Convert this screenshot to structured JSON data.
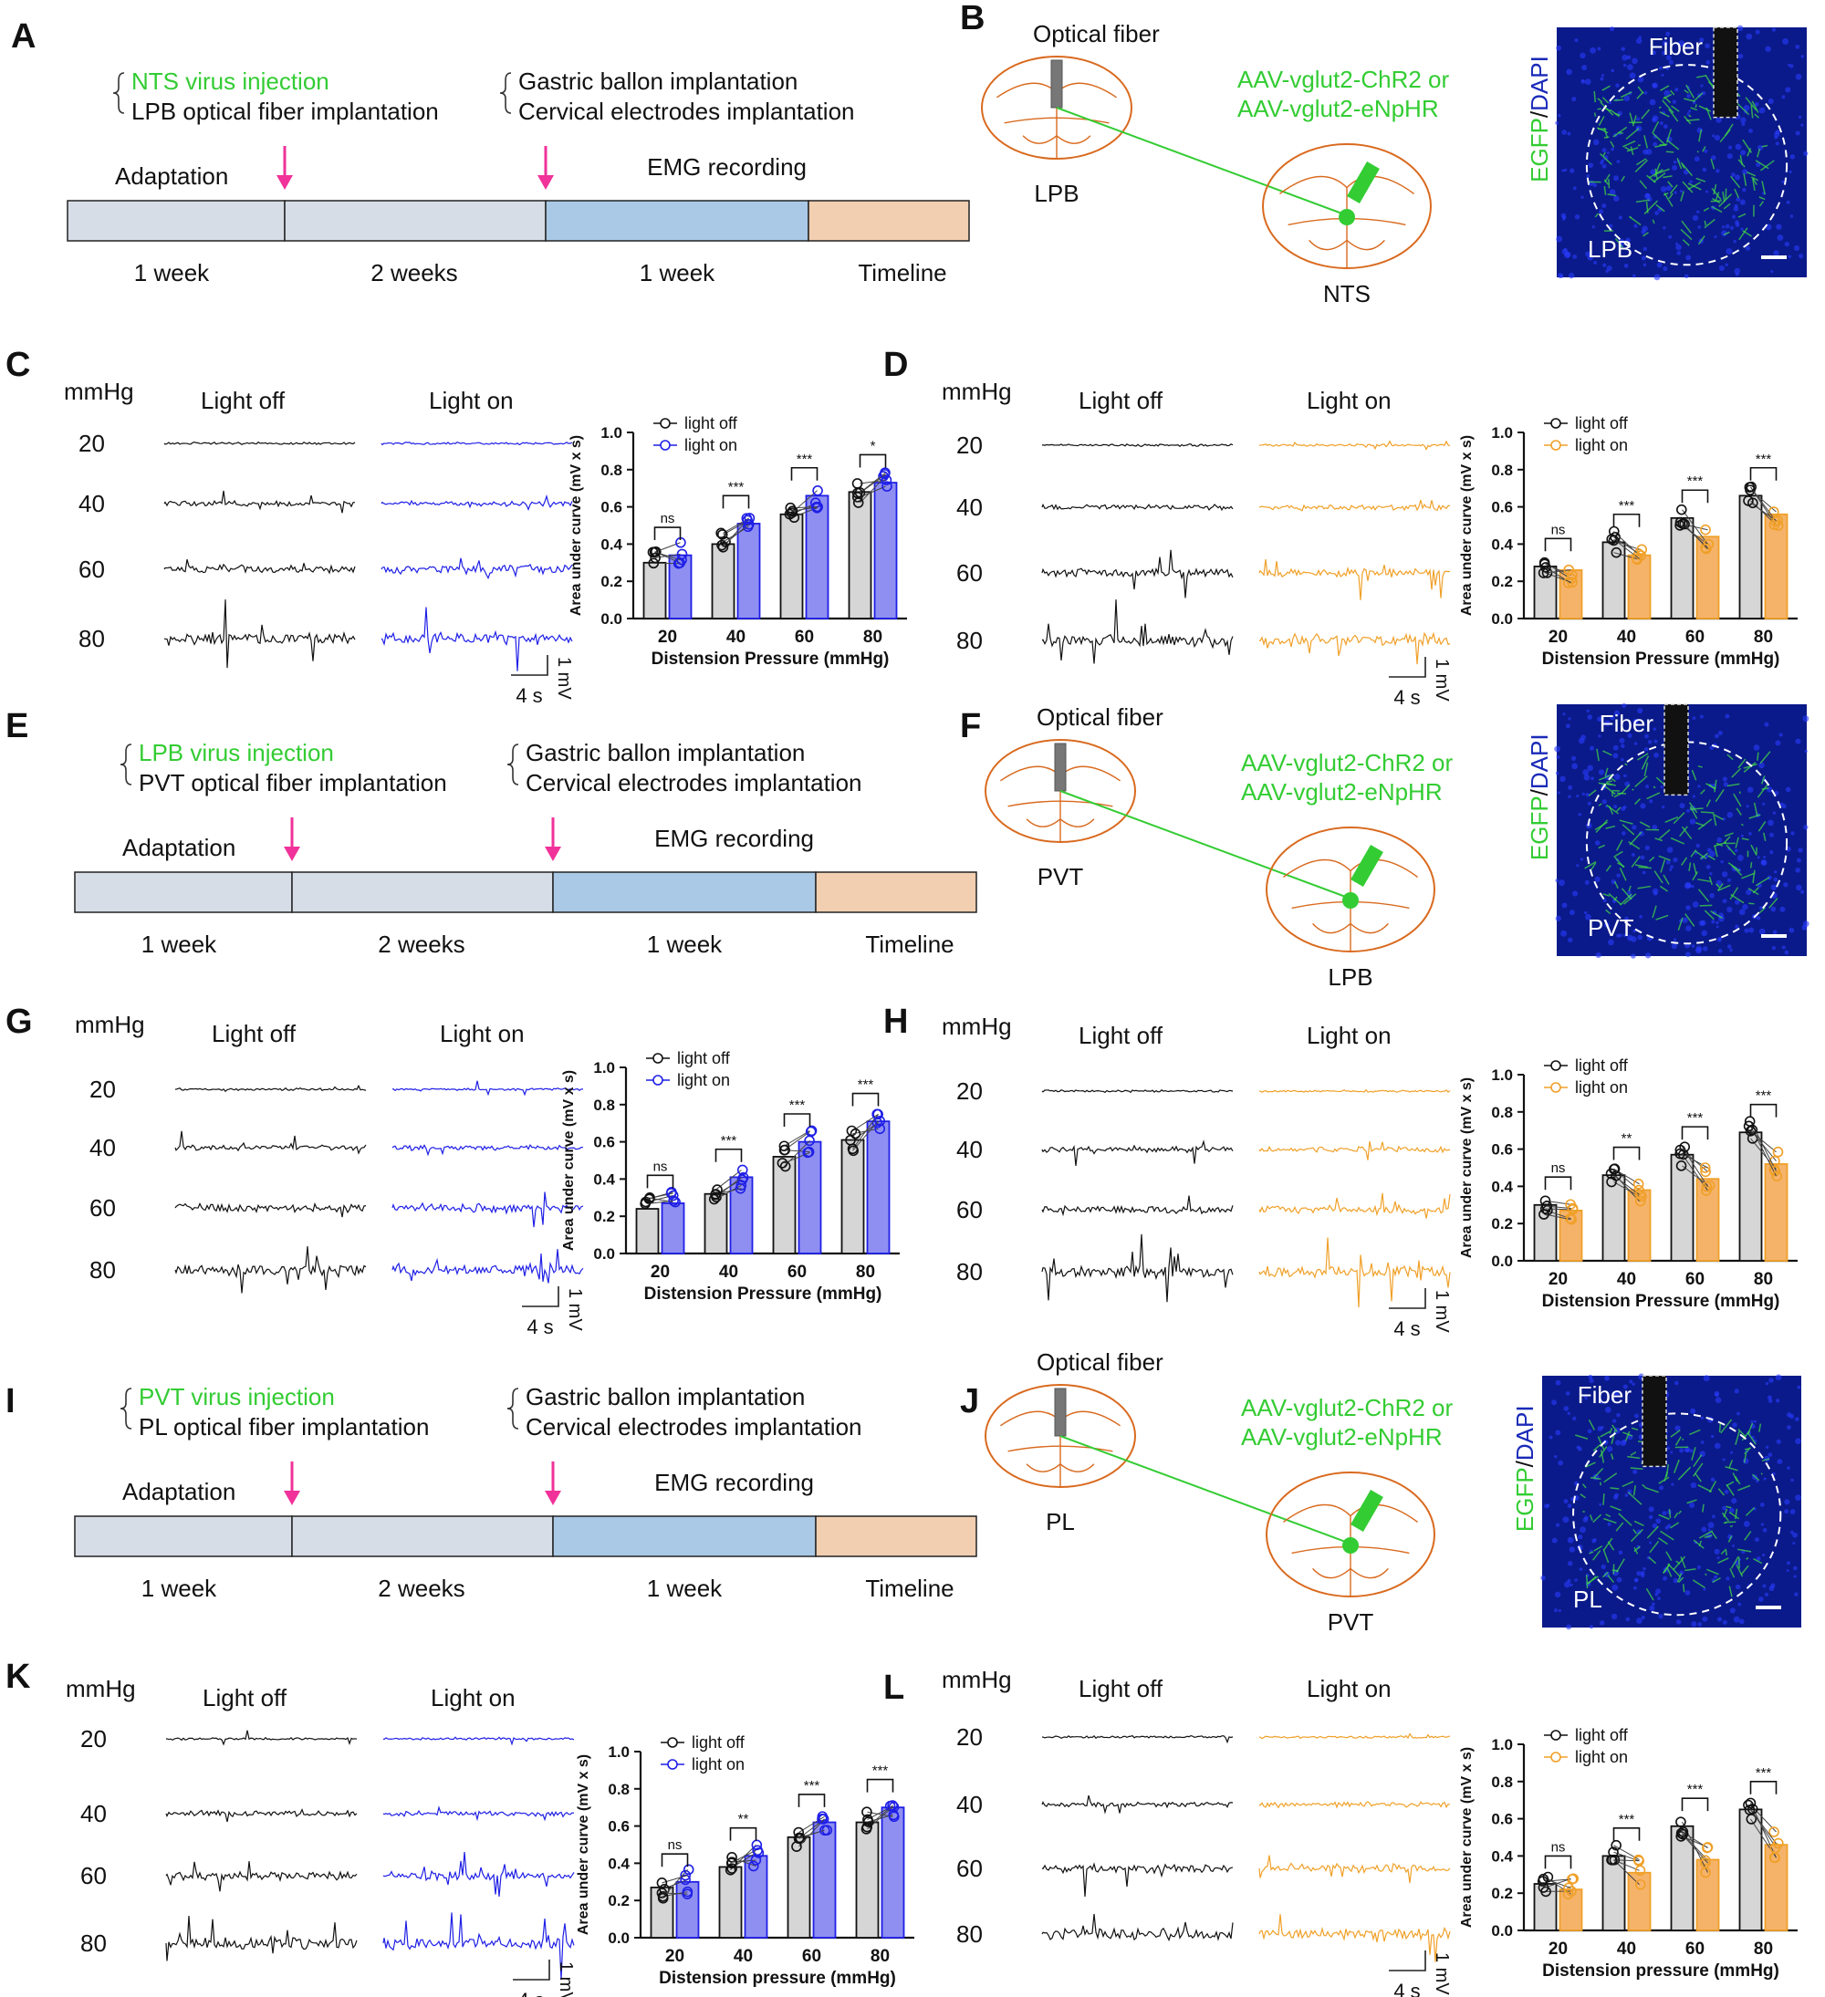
{
  "panel_letters": [
    "A",
    "B",
    "C",
    "D",
    "E",
    "F",
    "G",
    "H",
    "I",
    "J",
    "K",
    "L"
  ],
  "colors": {
    "black_trace": "#111111",
    "blue": "#1f1fe6",
    "blue_fill": "#8f8ff2",
    "orange": "#f0a028",
    "orange_fill": "#f5b36a",
    "gray_fill": "#d6d6d6",
    "green": "#33cc33",
    "magenta": "#f0329a",
    "brain": "#d96a1f",
    "seg_gray": "#d7dde6",
    "seg_blue": "#a9c9e6",
    "seg_peach": "#f2cfb0",
    "micro_bg": "#0a1a8a"
  },
  "timelines": [
    {
      "id": "A",
      "virus": "NTS virus injection",
      "fiber": "LPB optical fiber implantation",
      "surgery1": "Gastric ballon implantation",
      "surgery2": "Cervical electrodes implantation",
      "adaptation": "Adaptation",
      "emg": "EMG recording",
      "durations": [
        "1 week",
        "2 weeks",
        "1 week"
      ],
      "end": "Timeline"
    },
    {
      "id": "E",
      "virus": "LPB virus injection",
      "fiber": "PVT optical fiber implantation",
      "surgery1": "Gastric ballon implantation",
      "surgery2": "Cervical electrodes implantation",
      "adaptation": "Adaptation",
      "emg": "EMG recording",
      "durations": [
        "1 week",
        "2 weeks",
        "1 week"
      ],
      "end": "Timeline"
    },
    {
      "id": "I",
      "virus": "PVT virus injection",
      "fiber": "PL optical fiber implantation",
      "surgery1": "Gastric ballon implantation",
      "surgery2": "Cervical electrodes implantation",
      "adaptation": "Adaptation",
      "emg": "EMG recording",
      "durations": [
        "1 week",
        "2 weeks",
        "1 week"
      ],
      "end": "Timeline"
    }
  ],
  "schematics": [
    {
      "id": "B",
      "fiber_label": "Optical fiber",
      "virus1": "AAV-vglut2-ChR2 or",
      "virus2": "AAV-vglut2-eNpHR",
      "target": "LPB",
      "source": "NTS",
      "micro_fiber": "Fiber",
      "micro_region": "LPB",
      "stain_green": "EGFP",
      "stain_sep": "/",
      "stain_blue": "DAPI"
    },
    {
      "id": "F",
      "fiber_label": "Optical fiber",
      "virus1": "AAV-vglut2-ChR2 or",
      "virus2": "AAV-vglut2-eNpHR",
      "target": "PVT",
      "source": "LPB",
      "micro_fiber": "Fiber",
      "micro_region": "PVT",
      "stain_green": "EGFP",
      "stain_sep": "/",
      "stain_blue": "DAPI"
    },
    {
      "id": "J",
      "fiber_label": "Optical fiber",
      "virus1": "AAV-vglut2-ChR2 or",
      "virus2": "AAV-vglut2-eNpHR",
      "target": "PL",
      "source": "PVT",
      "micro_fiber": "Fiber",
      "micro_region": "PL",
      "stain_green": "EGFP",
      "stain_sep": "/",
      "stain_blue": "DAPI"
    }
  ],
  "traces": {
    "unit": "mmHg",
    "off": "Light off",
    "on": "Light on",
    "levels": [
      "20",
      "40",
      "60",
      "80"
    ],
    "scale_v": "1 mV",
    "scale_t": "4 s"
  },
  "chart_data": [
    {
      "panel": "C",
      "type": "bar",
      "categories": [
        "20",
        "40",
        "60",
        "80"
      ],
      "series": [
        {
          "name": "light off",
          "values": [
            0.3,
            0.4,
            0.56,
            0.68
          ]
        },
        {
          "name": "light on",
          "values": [
            0.34,
            0.51,
            0.66,
            0.73
          ]
        }
      ],
      "significance": [
        "ns",
        "***",
        "***",
        "*"
      ],
      "xlabel": "Distension Pressure (mmHg)",
      "ylabel": "Area under curve (mV x s)",
      "ylim": [
        0,
        1.0
      ],
      "yticks": [
        "0.0",
        "0.2",
        "0.4",
        "0.6",
        "0.8",
        "1.0"
      ],
      "color": "blue"
    },
    {
      "panel": "D",
      "type": "bar",
      "categories": [
        "20",
        "40",
        "60",
        "80"
      ],
      "series": [
        {
          "name": "light off",
          "values": [
            0.28,
            0.41,
            0.54,
            0.66
          ]
        },
        {
          "name": "light on",
          "values": [
            0.26,
            0.34,
            0.44,
            0.56
          ]
        }
      ],
      "significance": [
        "ns",
        "***",
        "***",
        "***"
      ],
      "xlabel": "Distension Pressure (mmHg)",
      "ylabel": "Area under curve (mV x s)",
      "ylim": [
        0,
        1.0
      ],
      "yticks": [
        "0.0",
        "0.2",
        "0.4",
        "0.6",
        "0.8",
        "1.0"
      ],
      "color": "orange"
    },
    {
      "panel": "G",
      "type": "bar",
      "categories": [
        "20",
        "40",
        "60",
        "80"
      ],
      "series": [
        {
          "name": "light off",
          "values": [
            0.24,
            0.32,
            0.52,
            0.61
          ]
        },
        {
          "name": "light on",
          "values": [
            0.27,
            0.41,
            0.6,
            0.71
          ]
        }
      ],
      "significance": [
        "ns",
        "***",
        "***",
        "***"
      ],
      "xlabel": "Distension Pressure (mmHg)",
      "ylabel": "Area under curve (mV x s)",
      "ylim": [
        0,
        1.0
      ],
      "yticks": [
        "0.0",
        "0.2",
        "0.4",
        "0.6",
        "0.8",
        "1.0"
      ],
      "color": "blue"
    },
    {
      "panel": "H",
      "type": "bar",
      "categories": [
        "20",
        "40",
        "60",
        "80"
      ],
      "series": [
        {
          "name": "light off",
          "values": [
            0.3,
            0.46,
            0.57,
            0.69
          ]
        },
        {
          "name": "light on",
          "values": [
            0.27,
            0.38,
            0.44,
            0.52
          ]
        }
      ],
      "significance": [
        "ns",
        "**",
        "***",
        "***"
      ],
      "xlabel": "Distension Pressure (mmHg)",
      "ylabel": "Area under curve (mV x s)",
      "ylim": [
        0,
        1.0
      ],
      "yticks": [
        "0.0",
        "0.2",
        "0.4",
        "0.6",
        "0.8",
        "1.0"
      ],
      "color": "orange"
    },
    {
      "panel": "K",
      "type": "bar",
      "categories": [
        "20",
        "40",
        "60",
        "80"
      ],
      "series": [
        {
          "name": "light off",
          "values": [
            0.27,
            0.38,
            0.54,
            0.62
          ]
        },
        {
          "name": "light on",
          "values": [
            0.3,
            0.44,
            0.62,
            0.7
          ]
        }
      ],
      "significance": [
        "ns",
        "**",
        "***",
        "***"
      ],
      "xlabel": "Distension pressure (mmHg)",
      "ylabel": "Area under curve (mV x s)",
      "ylim": [
        0,
        1.0
      ],
      "yticks": [
        "0.0",
        "0.2",
        "0.4",
        "0.6",
        "0.8",
        "1.0"
      ],
      "color": "blue"
    },
    {
      "panel": "L",
      "type": "bar",
      "categories": [
        "20",
        "40",
        "60",
        "80"
      ],
      "series": [
        {
          "name": "light off",
          "values": [
            0.25,
            0.4,
            0.56,
            0.65
          ]
        },
        {
          "name": "light on",
          "values": [
            0.22,
            0.31,
            0.38,
            0.46
          ]
        }
      ],
      "significance": [
        "ns",
        "***",
        "***",
        "***"
      ],
      "xlabel": "Distension pressure (mmHg)",
      "ylabel": "Area under curve (mV x s)",
      "ylim": [
        0,
        1.0
      ],
      "yticks": [
        "0.0",
        "0.2",
        "0.4",
        "0.6",
        "0.8",
        "1.0"
      ],
      "color": "orange"
    }
  ]
}
